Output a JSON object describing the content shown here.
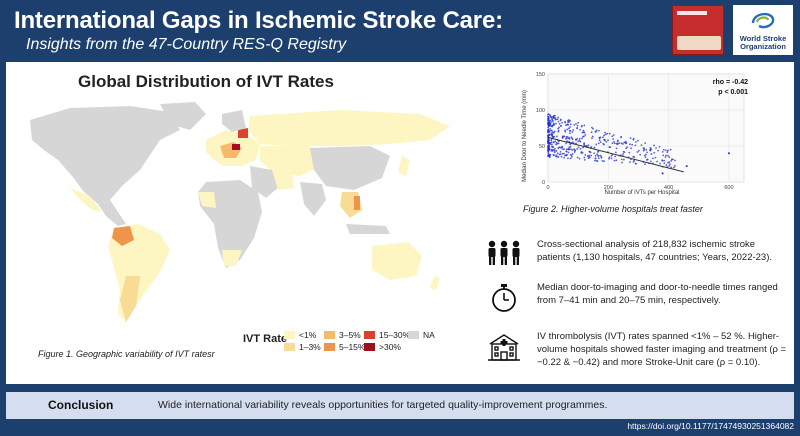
{
  "header": {
    "title": "International Gaps in Ischemic Stroke Care:",
    "subtitle": "Insights from the 47-Country RES-Q Registry",
    "logo_text_line1": "World Stroke",
    "logo_text_line2": "Organization"
  },
  "map": {
    "title": "Global Distribution of IVT Rates",
    "caption": "Figure 1. Geographic variability of IVT ratesr",
    "legend_title": "IVT Rate",
    "legend": [
      {
        "label": "<1%",
        "color": "#fdf6c2"
      },
      {
        "label": "1–3%",
        "color": "#f8dc93"
      },
      {
        "label": "3–5%",
        "color": "#f6b869"
      },
      {
        "label": "5–15%",
        "color": "#f0934b"
      },
      {
        "label": "15–30%",
        "color": "#d9432e"
      },
      {
        "label": ">30%",
        "color": "#a10f1f"
      },
      {
        "label": "NA",
        "color": "#d6d6d6"
      }
    ]
  },
  "scatter": {
    "caption": "Figure 2. Higher-volume hospitals treat faster",
    "xlabel": "Number of IVTs per Hospital",
    "ylabel": "Median Door to Needle Time (min)",
    "stat_rho": "rho = -0.42",
    "stat_p": "p < 0.001",
    "x_ticks": [
      "0",
      "200",
      "400",
      "600"
    ],
    "y_ticks": [
      "0",
      "50",
      "100",
      "150"
    ],
    "point_color": "#1f2fcf"
  },
  "findings": [
    {
      "icon": "people-icon",
      "text": "Cross-sectional analysis of 218,832 ischemic stroke patients (1,130 hospitals, 47 countries; Years, 2022-23)."
    },
    {
      "icon": "stopwatch-icon",
      "text": "Median door-to-imaging and door-to-needle times ranged from 7–41 min and 20–75 min, respectively."
    },
    {
      "icon": "hospital-icon",
      "text": "IV thrombolysis (IVT) rates spanned <1% – 52 %. Higher-volume hospitals showed faster imaging and treatment (ρ = −0.22 & −0.42) and more Stroke-Unit care (ρ = 0.10)."
    }
  ],
  "conclusion": {
    "label": "Conclusion",
    "text": "Wide international variability reveals opportunities for targeted quality-improvement programmes."
  },
  "doi": "https://doi.org/10.1177/17474930251364082"
}
